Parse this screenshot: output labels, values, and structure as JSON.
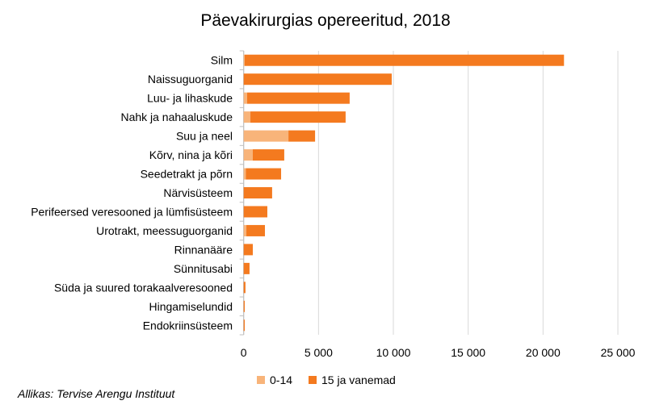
{
  "chart_data": {
    "type": "bar",
    "orientation": "horizontal",
    "stacked": true,
    "title": "Päevakirurgias opereeritud, 2018",
    "categories": [
      "Silm",
      "Naissuguorganid",
      "Luu- ja lihaskude",
      "Nahk ja nahaaluskude",
      "Suu ja neel",
      "Kõrv, nina ja kõri",
      "Seedetrakt ja põrn",
      "Närvisüsteem",
      "Perifeersed veresooned ja lümfisüsteem",
      "Urotrakt, meessuguorganid",
      "Rinnanääre",
      "Sünnitusabi",
      "Süda ja suured torakaalveresooned",
      "Hingamiselundid",
      "Endokriinsüsteem"
    ],
    "series": [
      {
        "name": "0-14",
        "color": "#F8B47A",
        "values": [
          70,
          0,
          230,
          450,
          2990,
          610,
          140,
          0,
          0,
          180,
          0,
          0,
          0,
          0,
          0
        ]
      },
      {
        "name": "15 ja vanemad",
        "color": "#F47A1F",
        "values": [
          21330,
          9890,
          6850,
          6360,
          1780,
          2100,
          2360,
          1900,
          1580,
          1240,
          610,
          390,
          120,
          70,
          70
        ]
      }
    ],
    "xlim": [
      0,
      25000
    ],
    "xticks": [
      0,
      5000,
      10000,
      15000,
      20000,
      25000
    ],
    "xtick_labels": [
      "0",
      "5 000",
      "10 000",
      "15 000",
      "20 000",
      "25 000"
    ],
    "grid": true,
    "legend": "bottom",
    "source": "Allikas: Tervise Arengu Instituut"
  }
}
